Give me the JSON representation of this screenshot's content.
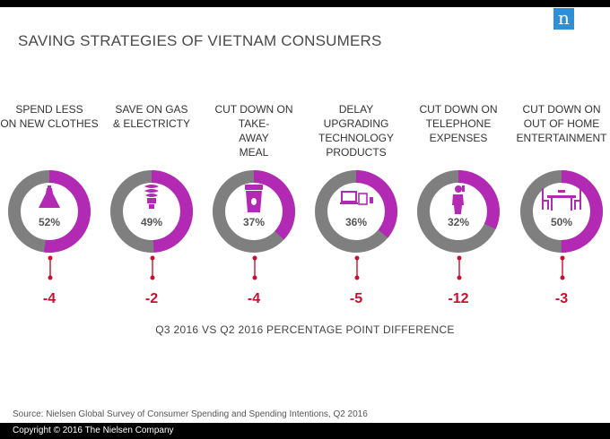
{
  "title": "SAVING STRATEGIES OF VIETNAM CONSUMERS",
  "logo_text": "n",
  "colors": {
    "accent": "#b22ab3",
    "ring_gray": "#7f7f7f",
    "difference": "#c8102e",
    "logo": "#2f8fd6"
  },
  "chart_data": {
    "type": "donut",
    "title": "SAVING STRATEGIES OF VIETNAM CONSUMERS",
    "categories": [
      "SPEND LESS ON NEW CLOTHES",
      "SAVE ON GAS & ELECTRICTY",
      "CUT DOWN ON TAKE-AWAY MEAL",
      "DELAY UPGRADING TECHNOLOGY PRODUCTS",
      "CUT DOWN ON TELEPHONE EXPENSES",
      "CUT DOWN ON OUT OF HOME ENTERTAINMENT"
    ],
    "items": [
      {
        "label_lines": [
          "SPEND LESS",
          "ON NEW CLOTHES"
        ],
        "percent": 52,
        "percent_label": "52%",
        "difference": -4,
        "difference_label": "-4",
        "icon": "dress-icon"
      },
      {
        "label_lines": [
          "SAVE ON GAS",
          "& ELECTRICTY"
        ],
        "percent": 49,
        "percent_label": "49%",
        "difference": -2,
        "difference_label": "-2",
        "icon": "light-bulb-icon"
      },
      {
        "label_lines": [
          "CUT DOWN ON TAKE-",
          "AWAY",
          "MEAL"
        ],
        "percent": 37,
        "percent_label": "37%",
        "difference": -4,
        "difference_label": "-4",
        "icon": "coffee-cup-icon"
      },
      {
        "label_lines": [
          "DELAY",
          "UPGRADING",
          "TECHNOLOGY",
          "PRODUCTS"
        ],
        "percent": 36,
        "percent_label": "36%",
        "difference": -5,
        "difference_label": "-5",
        "icon": "devices-icon"
      },
      {
        "label_lines": [
          "CUT DOWN ON",
          "TELEPHONE",
          "EXPENSES"
        ],
        "percent": 32,
        "percent_label": "32%",
        "difference": -12,
        "difference_label": "-12",
        "icon": "person-phone-icon"
      },
      {
        "label_lines": [
          "CUT DOWN ON",
          "OUT OF HOME",
          "ENTERTAINMENT"
        ],
        "percent": 50,
        "percent_label": "50%",
        "difference": -3,
        "difference_label": "-3",
        "icon": "dining-table-icon"
      }
    ],
    "difference_caption": "Q3 2016 VS Q2 2016 PERCENTAGE  POINT DIFFERENCE"
  },
  "source": "Source: Nielsen Global Survey of Consumer Spending and Spending Intentions, Q2 2016",
  "copyright": "Copyright © 2016 The Nielsen Company"
}
